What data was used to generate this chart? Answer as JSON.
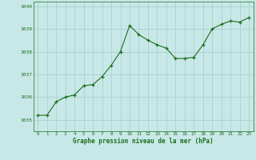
{
  "x": [
    0,
    1,
    2,
    3,
    4,
    5,
    6,
    7,
    8,
    9,
    10,
    11,
    12,
    13,
    14,
    15,
    16,
    17,
    18,
    19,
    20,
    21,
    22,
    23
  ],
  "y": [
    1035.2,
    1035.2,
    1035.8,
    1036.0,
    1036.1,
    1036.5,
    1036.55,
    1036.9,
    1037.4,
    1038.0,
    1039.15,
    1038.75,
    1038.5,
    1038.3,
    1038.15,
    1037.7,
    1037.7,
    1037.75,
    1038.3,
    1039.0,
    1039.2,
    1039.35,
    1039.3,
    1039.5
  ],
  "line_color": "#1a6e1a",
  "marker_color": "#1a6e1a",
  "bg_color": "#c8e8e8",
  "grid_color": "#aacece",
  "xlabel": "Graphe pression niveau de la mer (hPa)",
  "xlabel_color": "#1a6e1a",
  "tick_color": "#1a6e1a",
  "ylim_min": 1034.5,
  "ylim_max": 1040.2,
  "yticks": [
    1035,
    1036,
    1037,
    1038,
    1039,
    1040
  ],
  "xticks": [
    0,
    1,
    2,
    3,
    4,
    5,
    6,
    7,
    8,
    9,
    10,
    11,
    12,
    13,
    14,
    15,
    16,
    17,
    18,
    19,
    20,
    21,
    22,
    23
  ]
}
